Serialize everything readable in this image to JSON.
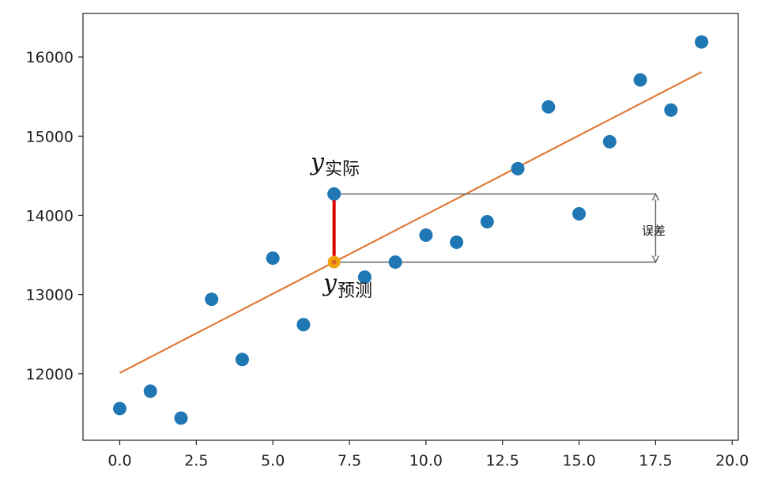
{
  "chart_data": {
    "type": "scatter",
    "title": "",
    "xlabel": "",
    "ylabel": "",
    "xlim": [
      -1.2,
      20.2
    ],
    "ylim": [
      11160,
      16550
    ],
    "xticks": [
      0,
      2.5,
      5,
      7.5,
      10,
      12.5,
      15,
      17.5,
      20
    ],
    "xtick_labels": [
      "0.0",
      "2.5",
      "5.0",
      "7.5",
      "10.0",
      "12.5",
      "15.0",
      "17.5",
      "20.0"
    ],
    "yticks": [
      12000,
      13000,
      14000,
      15000,
      16000
    ],
    "ytick_labels": [
      "12000",
      "13000",
      "14000",
      "15000",
      "16000"
    ],
    "grid": false,
    "series": [
      {
        "kind": "scatter",
        "x": [
          0,
          1,
          2,
          3,
          4,
          5,
          6,
          7,
          8,
          9,
          10,
          11,
          12,
          13,
          14,
          15,
          16,
          17,
          18,
          19
        ],
        "y": [
          11560,
          11780,
          11440,
          12940,
          12180,
          13460,
          12620,
          14270,
          13220,
          13410,
          13750,
          13660,
          13920,
          14590,
          15370,
          14020,
          14930,
          15710,
          15330,
          16190
        ],
        "color": "#1f77b4"
      },
      {
        "kind": "line",
        "x": [
          0,
          19
        ],
        "y": [
          12010,
          15810
        ],
        "color": "#e07b39"
      }
    ],
    "highlight": {
      "x": 7,
      "y_actual": 14270,
      "y_predicted": 13410,
      "predicted_color": "#f0a30a",
      "error_line_color": "#dd0000",
      "bracket_color": "#666666",
      "bracket_x": 17.5
    },
    "annotations": {
      "actual_symbol": "y",
      "actual_subscript": "实际",
      "predicted_symbol": "y",
      "predicted_subscript": "预测",
      "error_label": "误差"
    }
  }
}
